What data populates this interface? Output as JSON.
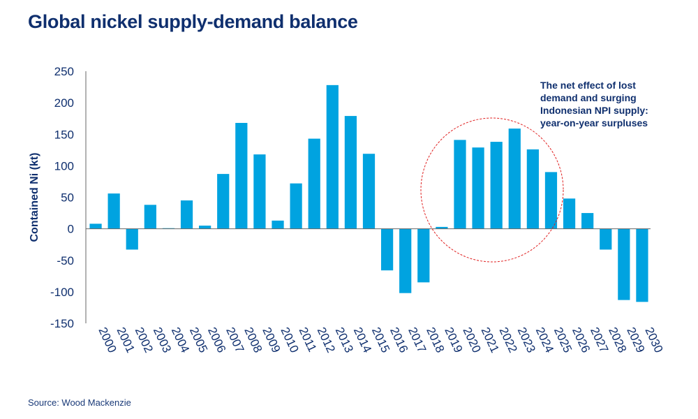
{
  "chart_data": {
    "type": "bar",
    "title": "Global nickel supply-demand balance",
    "ylabel": "Contained Ni (kt)",
    "xlabel": "",
    "ylim": [
      -150,
      250
    ],
    "yticks": [
      250,
      200,
      150,
      100,
      50,
      0,
      -50,
      -100,
      -150
    ],
    "grid": false,
    "bar_color": "#00a3e0",
    "categories": [
      "2000",
      "2001",
      "2002",
      "2003",
      "2004",
      "2005",
      "2006",
      "2007",
      "2008",
      "2009",
      "2010",
      "2011",
      "2012",
      "2013",
      "2014",
      "2015",
      "2016",
      "2017",
      "2018",
      "2019",
      "2020",
      "2021",
      "2022",
      "2023",
      "2024",
      "2025",
      "2026",
      "2027",
      "2028",
      "2029",
      "2030"
    ],
    "values": [
      8,
      56,
      -33,
      38,
      1,
      45,
      5,
      87,
      168,
      118,
      13,
      72,
      143,
      228,
      179,
      119,
      -66,
      -102,
      -85,
      3,
      141,
      129,
      138,
      159,
      126,
      90,
      48,
      25,
      -33,
      -113,
      -116
    ],
    "annotation": {
      "lines": [
        "The net effect of lost",
        "demand and surging",
        "Indonesian NPI supply:",
        "year-on-year surpluses"
      ],
      "highlight_range": [
        "2020",
        "2025"
      ],
      "circle_color": "#e02020"
    }
  },
  "source": "Source: Wood Mackenzie"
}
